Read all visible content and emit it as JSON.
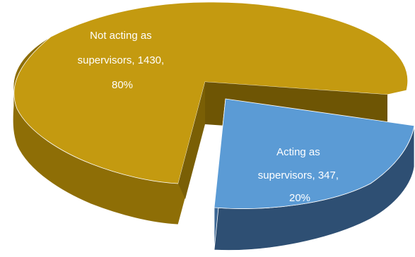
{
  "chart_data": {
    "type": "pie",
    "style": "3d-exploded",
    "slices": [
      {
        "name": "Not acting as supervisors",
        "value": 1430,
        "percent": "80%",
        "label_lines": [
          "Not acting as",
          "supervisors, 1430,",
          "80%"
        ],
        "color": "#C49A10",
        "side_color": "#8E6E06"
      },
      {
        "name": "Acting as supervisors",
        "value": 347,
        "percent": "20%",
        "label_lines": [
          "Acting as",
          "supervisors, 347,",
          "20%"
        ],
        "color": "#5B9BD5",
        "side_color": "#2E4F73",
        "exploded": true
      }
    ]
  }
}
